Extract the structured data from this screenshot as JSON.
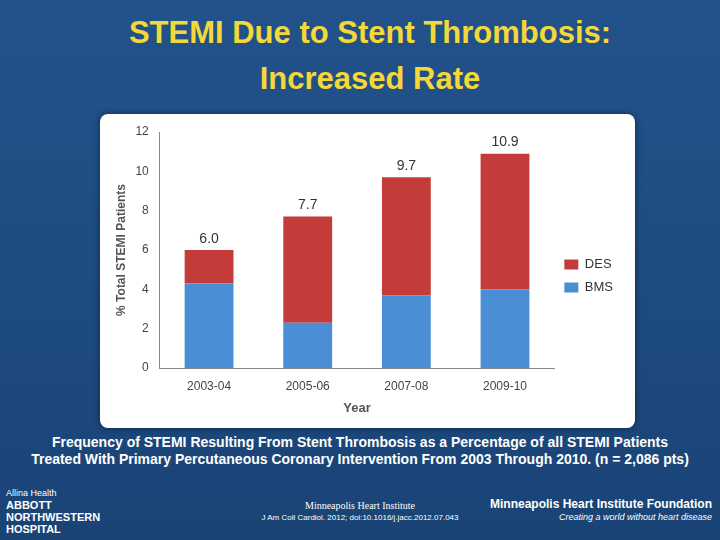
{
  "chart_data": {
    "type": "bar",
    "title": "STEMI Due to Stent Thrombosis: Increased Rate",
    "x_label": "Year",
    "y_label": "% Total STEMI Patients",
    "categories": [
      "2003-04",
      "2005-06",
      "2007-08",
      "2009-10"
    ],
    "series": [
      {
        "name": "DES",
        "color": "#c43c39",
        "values": [
          1.7,
          5.4,
          6.0,
          6.9
        ]
      },
      {
        "name": "BMS",
        "color": "#4a8fd6",
        "values": [
          4.3,
          2.3,
          3.7,
          4.0
        ]
      }
    ],
    "totals": {
      "values": [
        6.0,
        7.7,
        9.7,
        10.9
      ],
      "labels": [
        "6.0",
        "7.7",
        "9.7",
        "10.9"
      ]
    },
    "stacked": true,
    "legend": "right",
    "grid": false,
    "ylim": [
      0,
      12
    ],
    "yticks": [
      0,
      2,
      4,
      6,
      8,
      10,
      12
    ]
  },
  "caption": "Frequency of STEMI Resulting From Stent Thrombosis as a Percentage of all STEMI Patients Treated With Primary Percutaneous Coronary Intervention From 2003 Through 2010. (n = 2,086 pts)",
  "footer": {
    "left": [
      "Allina Health",
      "ABBOTT",
      "NORTHWESTERN",
      "HOSPITAL"
    ],
    "center": [
      "Minneapolis Heart Institute",
      "J Am Coll Cardiol. 2012; doi:10.1016/j.jacc.2012.07.043"
    ],
    "right": [
      "Minneapolis Heart Institute Foundation",
      "Creating a world without heart disease"
    ]
  }
}
